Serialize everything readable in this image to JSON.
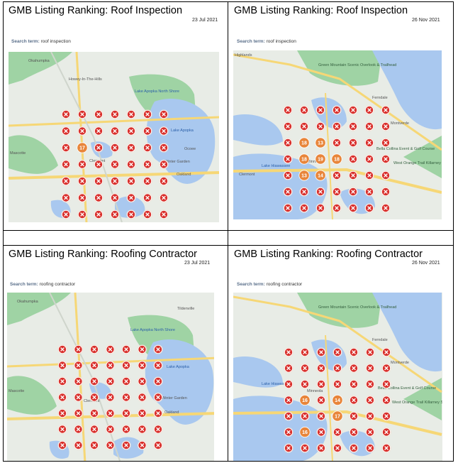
{
  "panels": [
    {
      "title": "GMB Listing Ranking: Roof Inspection",
      "date": "23 Jul 2021",
      "search_label": "Search term:",
      "search_term": "roof inspection",
      "map_labels": [
        "Howey-In-The-Hills",
        "Lake Apopka North Shore",
        "Lake Apopka",
        "Mascotte",
        "Clermont",
        "Oakland",
        "Winter Garden",
        "Ocoee",
        "Okahumpka"
      ],
      "grid": [
        [
          "x",
          "x",
          "x",
          "x",
          "x",
          "x",
          "x"
        ],
        [
          "x",
          "x",
          "x",
          "x",
          "x",
          "x",
          "x"
        ],
        [
          "x",
          "17",
          "x",
          "x",
          "x",
          "x",
          "x"
        ],
        [
          "x",
          "x",
          "x",
          "x",
          "x",
          "x",
          "x"
        ],
        [
          "x",
          "x",
          "x",
          "x",
          "x",
          "x",
          "x"
        ],
        [
          "x",
          "x",
          "x",
          "x",
          "x",
          "x",
          "x"
        ],
        [
          "x",
          "x",
          "x",
          "x",
          "x",
          "x",
          "x"
        ]
      ]
    },
    {
      "title": "GMB Listing Ranking: Roof Inspection",
      "date": "26 Nov 2021",
      "search_label": "Search term:",
      "search_term": "roof inspection",
      "map_labels": [
        "Green Mountain Scenic Overlook & Trailhead",
        "Highlands",
        "Lake Hiawassee",
        "Minneola",
        "Ferndale",
        "Montverde",
        "Bella Collina Event & Golf Course",
        "West Orange Trail Killarney Station",
        "Clermont"
      ],
      "grid": [
        [
          "x",
          "x",
          "x",
          "x",
          "x",
          "x",
          "x"
        ],
        [
          "x",
          "x",
          "x",
          "x",
          "x",
          "x",
          "x"
        ],
        [
          "x",
          "18",
          "13",
          "x",
          "x",
          "x",
          "x"
        ],
        [
          "x",
          "18",
          "19",
          "18",
          "x",
          "x",
          "x"
        ],
        [
          "x",
          "13",
          "14",
          "x",
          "x",
          "x",
          "x"
        ],
        [
          "x",
          "x",
          "x",
          "x",
          "x",
          "x",
          "x"
        ],
        [
          "x",
          "x",
          "x",
          "x",
          "x",
          "x",
          "x"
        ]
      ]
    },
    {
      "title": "GMB Listing Ranking: Roofing Contractor",
      "date": "23 Jul 2021",
      "search_label": "Search term:",
      "search_term": "roofing contractor",
      "map_labels": [
        "Okahumpka",
        "Lake Apopka North Shore",
        "Lake Apopka",
        "Winter Garden",
        "Oakland",
        "Clermont",
        "Mascotte",
        "Tildenville"
      ],
      "grid": [
        [
          "x",
          "x",
          "x",
          "x",
          "x",
          "x",
          "x"
        ],
        [
          "x",
          "x",
          "x",
          "x",
          "x",
          "x",
          "x"
        ],
        [
          "x",
          "x",
          "x",
          "x",
          "x",
          "x",
          "x"
        ],
        [
          "x",
          "x",
          "x",
          "x",
          "x",
          "x",
          "x"
        ],
        [
          "x",
          "x",
          "x",
          "x",
          "x",
          "x",
          "x"
        ],
        [
          "x",
          "x",
          "x",
          "x",
          "x",
          "x",
          "x"
        ],
        [
          "x",
          "x",
          "x",
          "x",
          "x",
          "x",
          "x"
        ]
      ]
    },
    {
      "title": "GMB Listing Ranking: Roofing Contractor",
      "date": "26 Nov 2021",
      "search_label": "Search term:",
      "search_term": "roofing contractor",
      "map_labels": [
        "Green Mountain Scenic Overlook & Trailhead",
        "Lake Hiawassee",
        "Minneola",
        "Ferndale",
        "Montverde",
        "Bella Collina Event & Golf Course",
        "West Orange Trail Killarney Station"
      ],
      "grid": [
        [
          "x",
          "x",
          "x",
          "x",
          "x",
          "x",
          "x"
        ],
        [
          "x",
          "x",
          "x",
          "x",
          "x",
          "x",
          "x"
        ],
        [
          "x",
          "x",
          "x",
          "x",
          "x",
          "x",
          "x"
        ],
        [
          "x",
          "16",
          "x",
          "14",
          "x",
          "x",
          "x"
        ],
        [
          "x",
          "x",
          "x",
          "17",
          "x",
          "x",
          "x"
        ],
        [
          "x",
          "16",
          "x",
          "x",
          "x",
          "x",
          "x"
        ],
        [
          "x",
          "x",
          "x",
          "x",
          "x",
          "x",
          "x"
        ]
      ]
    }
  ],
  "colors": {
    "miss_pin": "#d9302c",
    "rank_pin": "#e8853a",
    "water": "#a9c8ef",
    "park": "#9fd3a4",
    "land": "#e8ece6",
    "road": "#f6d776"
  }
}
